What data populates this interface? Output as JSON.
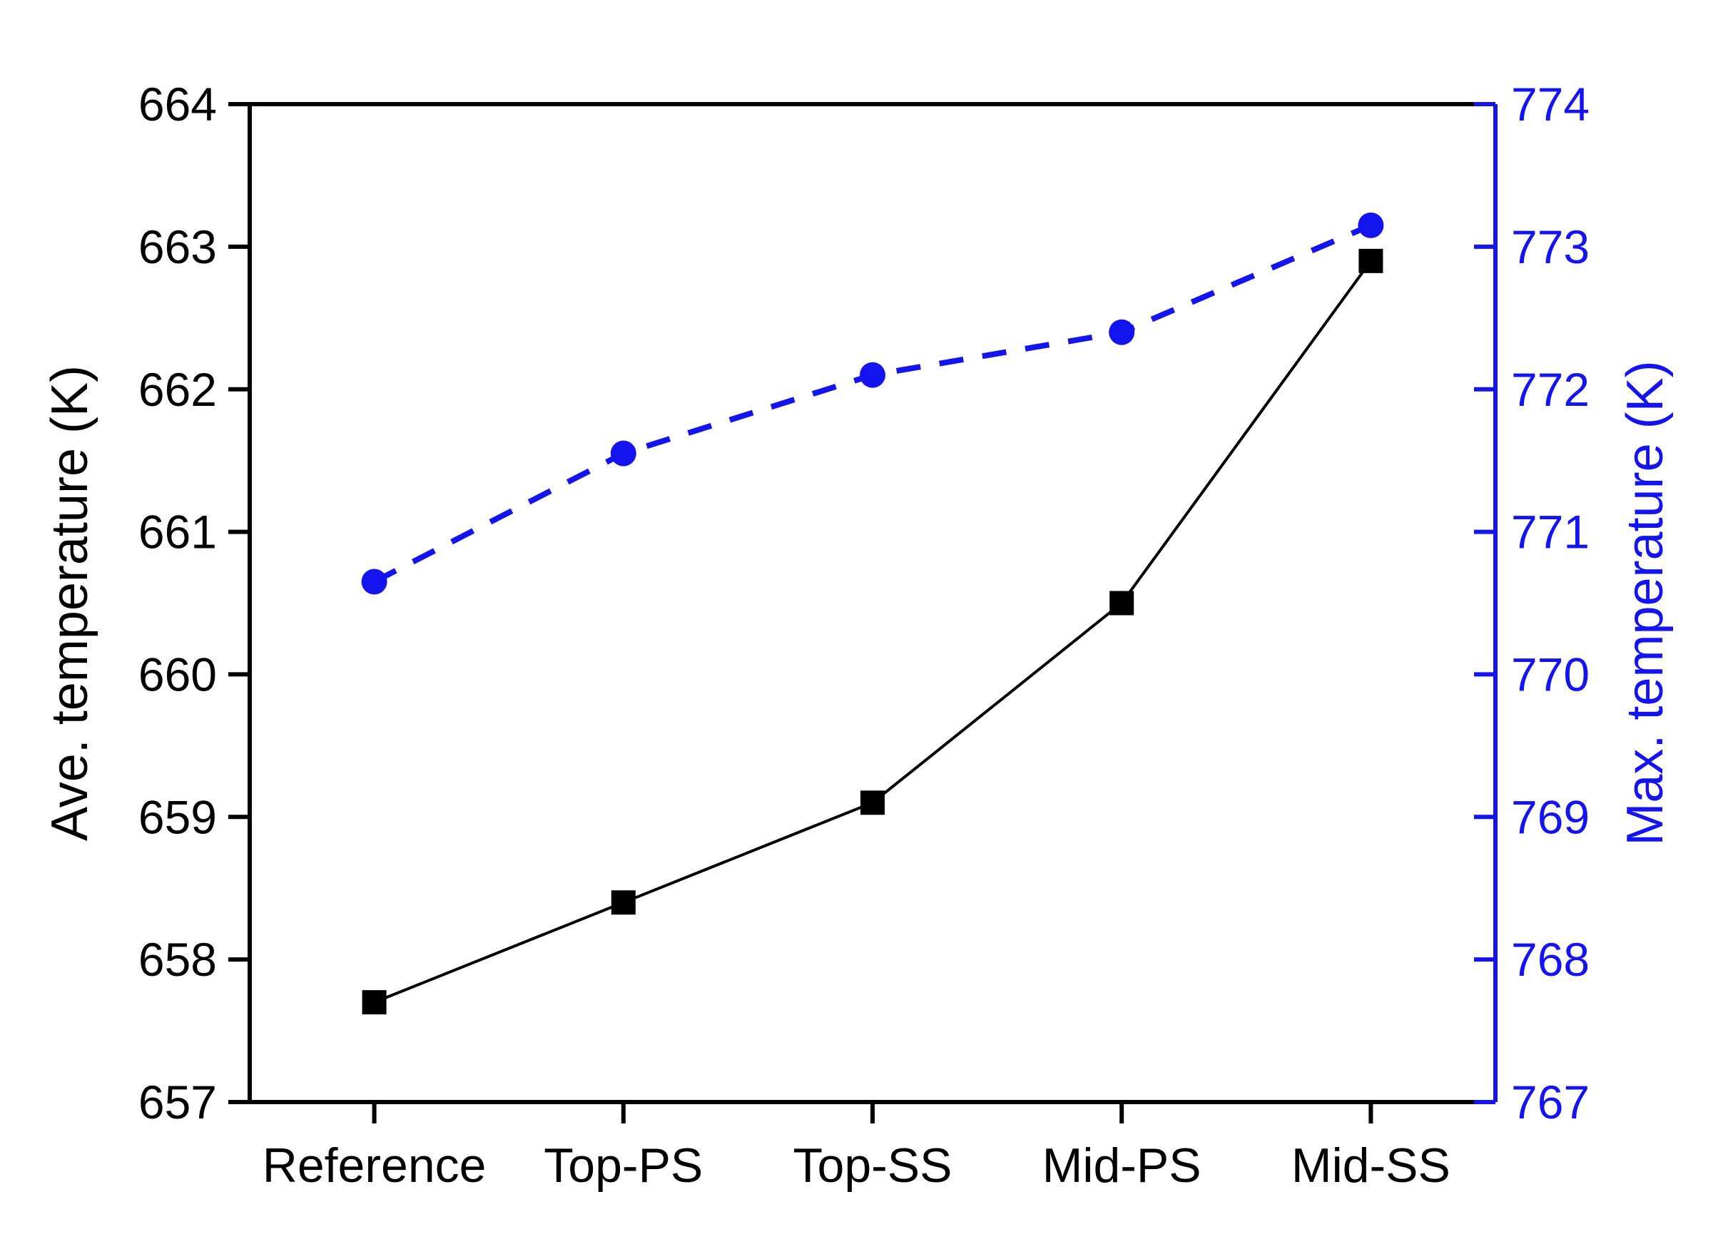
{
  "chart_data": {
    "type": "line",
    "title": "",
    "categories": [
      "Reference",
      "Top-PS",
      "Top-SS",
      "Mid-PS",
      "Mid-SS"
    ],
    "series": [
      {
        "id": "ave-temperature-series",
        "name": "Ave. temperature (K)",
        "axis": "left",
        "values": [
          657.7,
          658.4,
          659.1,
          660.5,
          662.9
        ],
        "color": "#000000",
        "marker": "square",
        "line_style": "solid"
      },
      {
        "id": "max-temperature-series",
        "name": "Max. temperature (K)",
        "axis": "right",
        "values": [
          770.65,
          771.55,
          772.1,
          772.4,
          773.15
        ],
        "color": "#1414ee",
        "marker": "circle",
        "line_style": "dashed"
      }
    ],
    "left_axis": {
      "label": "Ave. temperature (K)",
      "min": 657,
      "max": 664,
      "tick_step": 1,
      "ticks": [
        657,
        658,
        659,
        660,
        661,
        662,
        663,
        664
      ],
      "color": "#000000"
    },
    "right_axis": {
      "label": "Max. temperature (K)",
      "min": 767,
      "max": 774,
      "tick_step": 1,
      "ticks": [
        767,
        768,
        769,
        770,
        771,
        772,
        773,
        774
      ],
      "color": "#1414ee"
    },
    "x_axis": {
      "label": "",
      "tick_color": "#000000",
      "label_color": "#000000"
    },
    "grid": false,
    "legend": "none"
  }
}
